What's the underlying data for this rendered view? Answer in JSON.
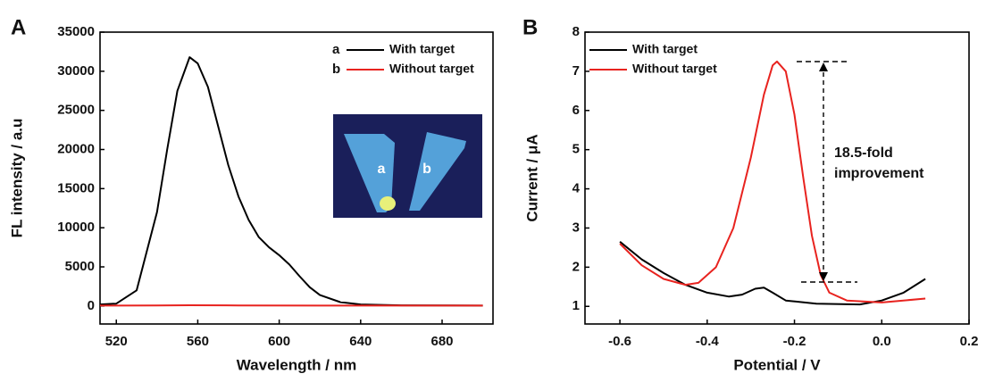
{
  "chart_data": [
    {
      "type": "line",
      "panel_label": "A",
      "x_label": "Wavelength / nm",
      "y_label": "FL intensity / a.u",
      "xlim": [
        512,
        705
      ],
      "xticks": [
        520,
        560,
        600,
        640,
        680
      ],
      "ylim": [
        -2300,
        35000
      ],
      "yticks": [
        0,
        5000,
        10000,
        15000,
        20000,
        25000,
        30000,
        35000
      ],
      "legend_letters": [
        "a",
        "b"
      ],
      "inset_labels": [
        "a",
        "b"
      ],
      "series": [
        {
          "name": "With target",
          "color": "#000000",
          "x": [
            512,
            520,
            530,
            540,
            545,
            550,
            556,
            560,
            565,
            570,
            575,
            580,
            585,
            590,
            595,
            600,
            605,
            610,
            615,
            620,
            630,
            640,
            660,
            700
          ],
          "values": [
            200,
            300,
            2000,
            12000,
            20000,
            27500,
            31800,
            31000,
            28000,
            23000,
            18000,
            14000,
            11000,
            8800,
            7500,
            6500,
            5300,
            3800,
            2400,
            1400,
            500,
            200,
            80,
            50
          ]
        },
        {
          "name": "Without target",
          "color": "#e8231f",
          "x": [
            512,
            540,
            556,
            580,
            620,
            700
          ],
          "values": [
            50,
            60,
            100,
            70,
            50,
            50
          ]
        }
      ]
    },
    {
      "type": "line",
      "panel_label": "B",
      "x_label": "Potential / V",
      "y_label": "Current / μA",
      "xlim": [
        -0.68,
        0.2
      ],
      "xticks": [
        {
          "value": -0.6,
          "label": "-0.6"
        },
        {
          "value": -0.4,
          "label": "-0.4"
        },
        {
          "value": -0.2,
          "label": "-0.2"
        },
        {
          "value": 0,
          "label": "0.0"
        },
        0.2
      ],
      "ylim": [
        0.55,
        8
      ],
      "yticks": [
        1,
        2,
        3,
        4,
        5,
        6,
        7,
        8
      ],
      "annotation": [
        "18.5-fold",
        "improvement"
      ],
      "series": [
        {
          "name": "With target",
          "color": "#000000",
          "x": [
            -0.6,
            -0.55,
            -0.5,
            -0.45,
            -0.4,
            -0.35,
            -0.32,
            -0.29,
            -0.27,
            -0.25,
            -0.22,
            -0.15,
            -0.05,
            0.0,
            0.05,
            0.1
          ],
          "values": [
            2.65,
            2.2,
            1.85,
            1.55,
            1.35,
            1.25,
            1.3,
            1.45,
            1.48,
            1.35,
            1.15,
            1.07,
            1.05,
            1.15,
            1.35,
            1.7
          ]
        },
        {
          "name": "Without target",
          "color": "#e8231f",
          "x": [
            -0.6,
            -0.55,
            -0.5,
            -0.45,
            -0.42,
            -0.38,
            -0.34,
            -0.3,
            -0.27,
            -0.25,
            -0.24,
            -0.22,
            -0.2,
            -0.18,
            -0.16,
            -0.14,
            -0.12,
            -0.08,
            0.0,
            0.1
          ],
          "values": [
            2.6,
            2.05,
            1.7,
            1.55,
            1.6,
            2.0,
            3.0,
            4.8,
            6.4,
            7.15,
            7.25,
            7.0,
            5.9,
            4.3,
            2.8,
            1.8,
            1.35,
            1.15,
            1.1,
            1.2
          ]
        }
      ]
    }
  ]
}
